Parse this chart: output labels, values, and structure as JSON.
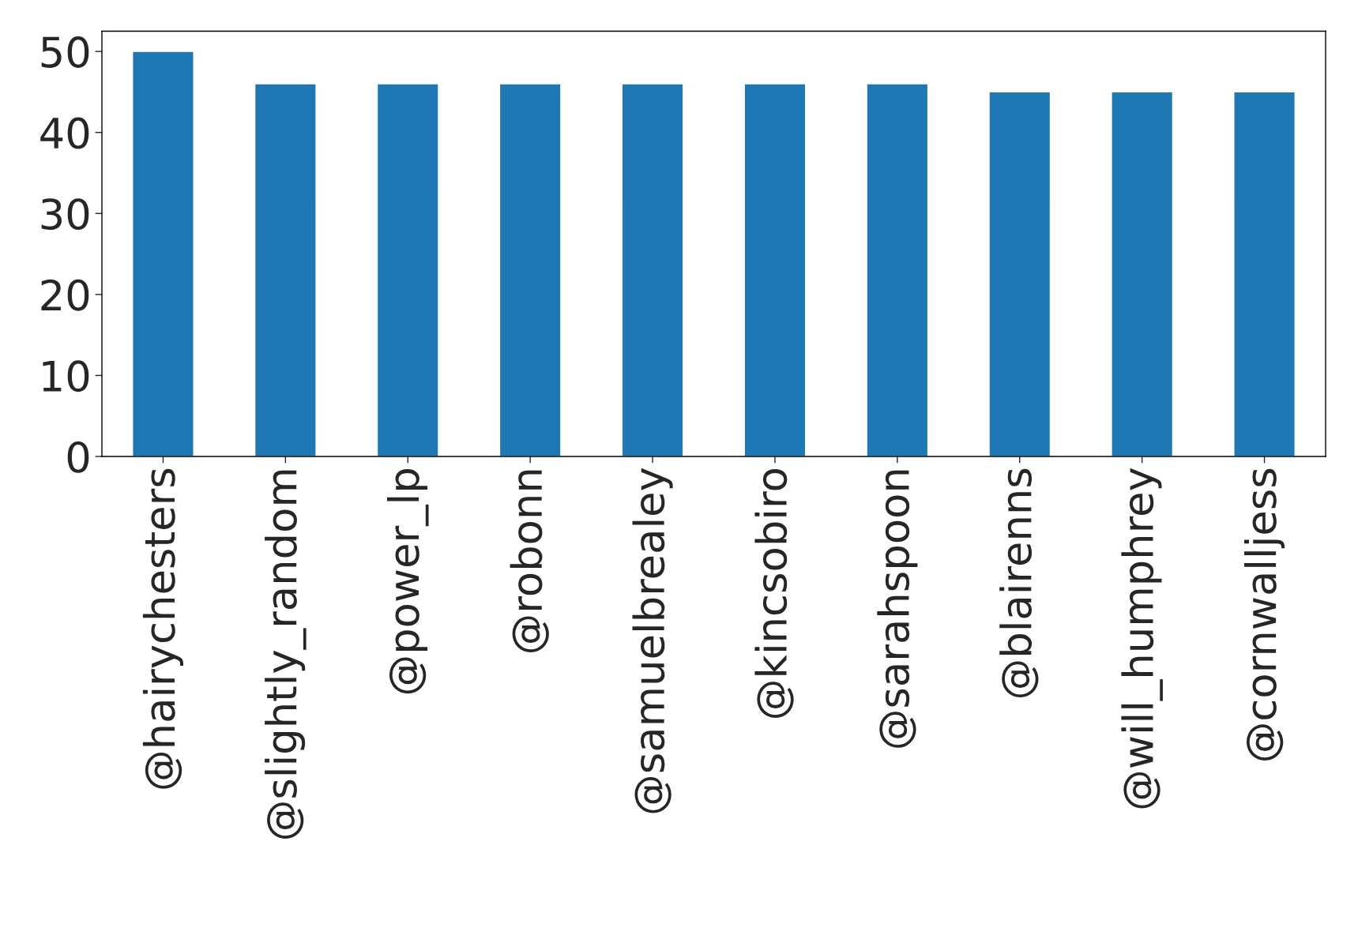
{
  "chart_data": {
    "type": "bar",
    "categories": [
      "@hairychesters",
      "@slightly_random",
      "@power_lp",
      "@robonn",
      "@samuelbrealey",
      "@kincsobiro",
      "@sarahspoon",
      "@blairenns",
      "@will_humphrey",
      "@cornwalljess"
    ],
    "values": [
      50,
      46,
      46,
      46,
      46,
      46,
      46,
      45,
      45,
      45
    ],
    "color": "#1f77b4",
    "ylim": [
      0,
      52.5
    ],
    "yticks": [
      0,
      10,
      20,
      30,
      40,
      50
    ],
    "grid": false,
    "legend": false
  }
}
